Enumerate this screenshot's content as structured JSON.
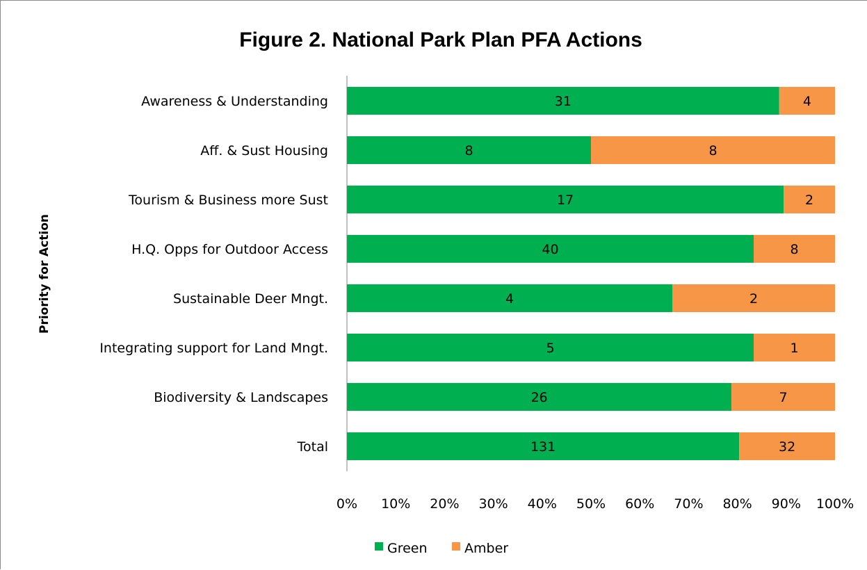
{
  "chart_data": {
    "type": "bar",
    "orientation": "horizontal",
    "stacking": "percent",
    "title": "Figure 2. National Park Plan PFA Actions",
    "ylabel": "Priority for Action",
    "xlabel": "",
    "categories": [
      "Awareness & Understanding",
      "Aff. & Sust Housing",
      "Tourism & Business more Sust",
      "H.Q. Opps for Outdoor Access",
      "Sustainable Deer Mngt.",
      "Integrating support for Land Mngt.",
      "Biodiversity & Landscapes",
      "Total"
    ],
    "series": [
      {
        "name": "Green",
        "color": "#00b050",
        "values": [
          31,
          8,
          17,
          40,
          4,
          5,
          26,
          131
        ]
      },
      {
        "name": "Amber",
        "color": "#f79646",
        "values": [
          4,
          8,
          2,
          8,
          2,
          1,
          7,
          32
        ]
      }
    ],
    "xlim": [
      0,
      100
    ],
    "xticks": [
      "0%",
      "10%",
      "20%",
      "30%",
      "40%",
      "50%",
      "60%",
      "70%",
      "80%",
      "90%",
      "100%"
    ],
    "grid": false,
    "legend_position": "bottom"
  }
}
